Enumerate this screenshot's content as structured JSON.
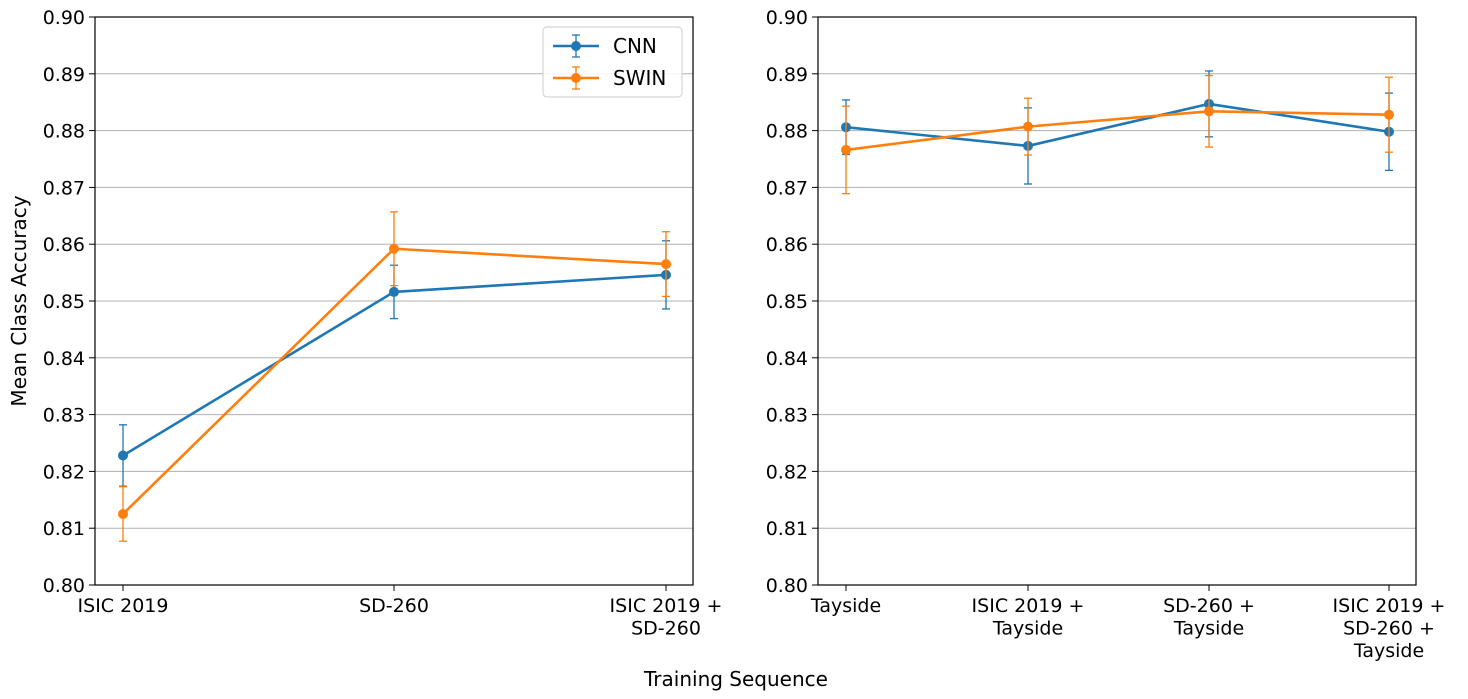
{
  "figure": {
    "xlabel": "Training Sequence",
    "ylabel": "Mean Class Accuracy"
  },
  "colors": {
    "CNN": "#1f77b4",
    "SWIN": "#ff7f0e"
  },
  "legend": {
    "placement": "upper-right",
    "entries": [
      "CNN",
      "SWIN"
    ]
  },
  "chart_data": [
    {
      "type": "line",
      "categories": [
        [
          "ISIC 2019"
        ],
        [
          "SD-260"
        ],
        [
          "ISIC 2019 +",
          "SD-260"
        ]
      ],
      "ylim": [
        0.8,
        0.9
      ],
      "yticks": [
        "0.80",
        "0.81",
        "0.82",
        "0.83",
        "0.84",
        "0.85",
        "0.86",
        "0.87",
        "0.88",
        "0.89",
        "0.90"
      ],
      "grid": "y",
      "legend": true,
      "series": [
        {
          "name": "CNN",
          "values": [
            0.8228,
            0.8516,
            0.8546
          ],
          "err": [
            0.0054,
            0.0047,
            0.006
          ]
        },
        {
          "name": "SWIN",
          "values": [
            0.8125,
            0.8592,
            0.8565
          ],
          "err": [
            0.0048,
            0.0065,
            0.0057
          ]
        }
      ]
    },
    {
      "type": "line",
      "categories": [
        [
          "Tayside"
        ],
        [
          "ISIC 2019 +",
          "Tayside"
        ],
        [
          "SD-260 +",
          "Tayside"
        ],
        [
          "ISIC 2019 +",
          "SD-260 +",
          "Tayside"
        ]
      ],
      "ylim": [
        0.8,
        0.9
      ],
      "yticks": [
        "0.80",
        "0.81",
        "0.82",
        "0.83",
        "0.84",
        "0.85",
        "0.86",
        "0.87",
        "0.88",
        "0.89",
        "0.90"
      ],
      "grid": "y",
      "legend": false,
      "series": [
        {
          "name": "CNN",
          "values": [
            0.8806,
            0.8773,
            0.8847,
            0.8798
          ],
          "err": [
            0.0048,
            0.0067,
            0.0058,
            0.0068
          ]
        },
        {
          "name": "SWIN",
          "values": [
            0.8766,
            0.8807,
            0.8834,
            0.8828
          ],
          "err": [
            0.0077,
            0.005,
            0.0063,
            0.0066
          ]
        }
      ]
    }
  ]
}
